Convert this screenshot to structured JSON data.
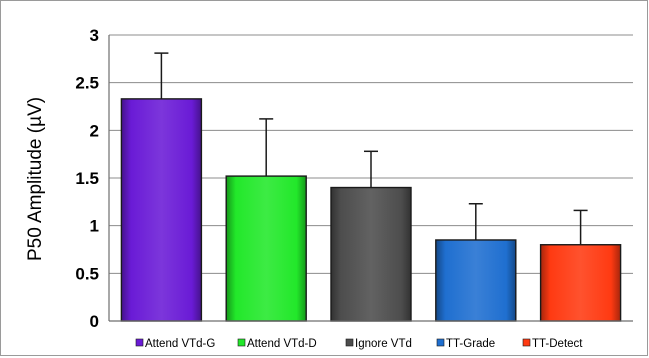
{
  "chart_data": {
    "type": "bar",
    "title": "",
    "xlabel": "",
    "ylabel": "P50 Amplitude (µV)",
    "ylim": [
      0,
      3
    ],
    "yticks": [
      "0",
      "0.5",
      "1",
      "1.5",
      "2",
      "2.5",
      "3"
    ],
    "grid": true,
    "legend_position": "bottom",
    "categories": [
      "Attend VTd-G",
      "Attend VTd-D",
      "Ignore VTd",
      "TT-Grade",
      "TT-Detect"
    ],
    "values": [
      2.33,
      1.52,
      1.4,
      0.85,
      0.8
    ],
    "error_upper": [
      0.48,
      0.6,
      0.38,
      0.38,
      0.36
    ],
    "colors": [
      "#6a1bd6",
      "#22e82a",
      "#4d4d4d",
      "#1f6fd0",
      "#ff3a12"
    ]
  }
}
